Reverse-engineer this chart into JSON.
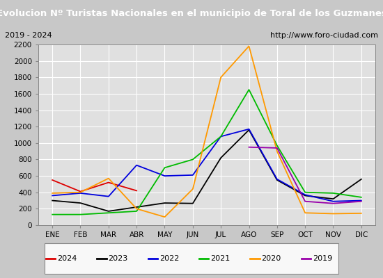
{
  "title": "Evolucion Nº Turistas Nacionales en el municipio de Toral de los Guzmanes",
  "subtitle_left": "2019 - 2024",
  "subtitle_right": "http://www.foro-ciudad.com",
  "months": [
    "ENE",
    "FEB",
    "MAR",
    "ABR",
    "MAY",
    "JUN",
    "JUL",
    "AGO",
    "SEP",
    "OCT",
    "NOV",
    "DIC"
  ],
  "ylim": [
    0,
    2200
  ],
  "yticks": [
    0,
    200,
    400,
    600,
    800,
    1000,
    1200,
    1400,
    1600,
    1800,
    2000,
    2200
  ],
  "series": {
    "2024": {
      "color": "#dd0000",
      "data": [
        550,
        410,
        520,
        420,
        null,
        null,
        null,
        null,
        null,
        null,
        null,
        null
      ]
    },
    "2023": {
      "color": "#000000",
      "data": [
        300,
        270,
        170,
        220,
        270,
        265,
        820,
        1160,
        550,
        360,
        320,
        560
      ]
    },
    "2022": {
      "color": "#0000dd",
      "data": [
        360,
        390,
        350,
        730,
        600,
        610,
        1080,
        1170,
        560,
        370,
        290,
        300
      ]
    },
    "2021": {
      "color": "#00bb00",
      "data": [
        130,
        130,
        150,
        170,
        700,
        800,
        1080,
        1650,
        970,
        400,
        390,
        340
      ]
    },
    "2020": {
      "color": "#ff9900",
      "data": [
        390,
        400,
        570,
        200,
        100,
        440,
        1800,
        2180,
        900,
        150,
        140,
        145
      ]
    },
    "2019": {
      "color": "#9900aa",
      "data": [
        null,
        null,
        null,
        null,
        null,
        null,
        null,
        950,
        940,
        290,
        265,
        290
      ]
    }
  },
  "legend_order": [
    "2024",
    "2023",
    "2022",
    "2021",
    "2020",
    "2019"
  ],
  "plot_bg": "#e0e0e0",
  "fig_bg": "#c8c8c8",
  "title_bg": "#4472c4",
  "title_color": "#ffffff",
  "subtitle_bg": "#f0f0f0",
  "grid_color": "#ffffff",
  "title_fontsize": 9.5,
  "subtitle_fontsize": 8,
  "tick_fontsize": 7.5,
  "legend_fontsize": 8
}
